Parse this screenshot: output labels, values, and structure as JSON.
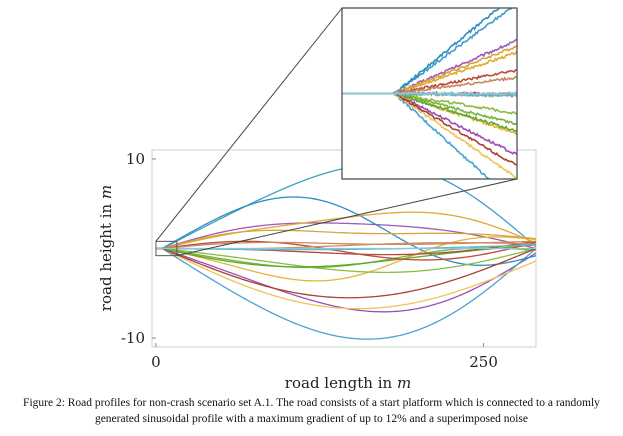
{
  "chart_data": {
    "type": "line",
    "xlabel_text": "road length in",
    "xlabel_var": "m",
    "ylabel_text": "road height in",
    "ylabel_var": "m",
    "xlim": [
      -3,
      290
    ],
    "ylim": [
      -11,
      11
    ],
    "x_ticks": [
      {
        "value": 0,
        "label": "0"
      },
      {
        "value": 250,
        "label": "250"
      }
    ],
    "y_ticks": [
      {
        "value": 10,
        "label": "10"
      },
      {
        "value": -10,
        "label": "-10"
      }
    ],
    "platform": {
      "x_end": 4.8,
      "height": 0
    },
    "x_end": 290,
    "zoom_window": {
      "x": [
        0,
        16
      ],
      "y": [
        -0.8,
        0.8
      ]
    },
    "series": [
      {
        "color": "#a05ab8",
        "end": 0.0,
        "amps": [
          3.0,
          2.2,
          0.6
        ],
        "phases": [
          0.1,
          1.2,
          2.6
        ]
      },
      {
        "color": "#9b4fb6",
        "end": -0.5,
        "amps": [
          -6.5,
          1.0,
          0.0
        ],
        "phases": [
          0,
          0,
          0
        ]
      },
      {
        "color": "#3f9fc9",
        "end": 0.2,
        "amps": [
          9.0,
          -1.5,
          0.5
        ],
        "phases": [
          0.05,
          0.3,
          0.8
        ]
      },
      {
        "color": "#4aa3d0",
        "end": 0.0,
        "amps": [
          -10.0,
          0.8,
          0.0
        ],
        "phases": [
          0,
          0,
          0
        ]
      },
      {
        "color": "#2e8fbf",
        "end": -0.8,
        "amps": [
          4.0,
          3.0,
          -1.0
        ],
        "phases": [
          0.2,
          0.1,
          0.4
        ]
      },
      {
        "color": "#e7b43a",
        "end": 1.0,
        "amps": [
          -3.0,
          -2.5,
          0.8
        ],
        "phases": [
          0.3,
          0.5,
          0.2
        ]
      },
      {
        "color": "#e1a92e",
        "end": 0.6,
        "amps": [
          3.5,
          -0.8,
          0.3
        ],
        "phases": [
          0,
          0.2,
          0.1
        ]
      },
      {
        "color": "#f0c35a",
        "end": -1.4,
        "amps": [
          -6.0,
          0.0,
          0.0
        ],
        "phases": [
          0.4,
          0,
          0
        ]
      },
      {
        "color": "#d7a63a",
        "end": 1.1,
        "amps": [
          1.5,
          2.0,
          0.4
        ],
        "phases": [
          0.2,
          0.7,
          0.3
        ]
      },
      {
        "color": "#8bbd45",
        "end": 0.0,
        "amps": [
          -2.5,
          0.6,
          0.5
        ],
        "phases": [
          0.2,
          0.3,
          0.9
        ]
      },
      {
        "color": "#7ab33a",
        "end": -0.2,
        "amps": [
          -1.5,
          -0.8,
          0.3
        ],
        "phases": [
          0.1,
          0.1,
          0.2
        ]
      },
      {
        "color": "#5fa830",
        "end": 0.4,
        "amps": [
          -2.0,
          -0.5,
          0.0
        ],
        "phases": [
          0.15,
          0,
          0
        ]
      },
      {
        "color": "#b64a3a",
        "end": 0.8,
        "amps": [
          -1.0,
          0.4,
          0.0
        ],
        "phases": [
          0,
          0.2,
          0
        ]
      },
      {
        "color": "#a84233",
        "end": 0.0,
        "amps": [
          -5.5,
          0.0,
          0.0
        ],
        "phases": [
          0.3,
          0,
          0
        ]
      },
      {
        "color": "#c0493b",
        "end": 0.7,
        "amps": [
          -0.8,
          1.8,
          0.0
        ],
        "phases": [
          0.0,
          0.4,
          0
        ]
      },
      {
        "color": "#c48c5e",
        "end": 0.8,
        "amps": [
          0.2,
          0.3,
          0.1
        ],
        "phases": [
          0.1,
          0.2,
          0.3
        ]
      },
      {
        "color": "#d88a5a",
        "end": 0.5,
        "amps": [
          0.1,
          -0.2,
          0.0
        ],
        "phases": [
          0,
          0,
          0
        ]
      },
      {
        "color": "#5ab9c9",
        "end": 0.4,
        "amps": [
          -0.3,
          0.0,
          0.0
        ],
        "phases": [
          0,
          0,
          0
        ]
      },
      {
        "color": "#89c7e0",
        "end": 0.0,
        "amps": [
          0.0,
          0.0,
          0.0
        ],
        "phases": [
          0,
          0,
          0
        ]
      }
    ]
  },
  "caption": {
    "text": "Figure 2: Road profiles for non-crash scenario set A.1. The road consists of a start platform which is connected to a randomly generated sinusoidal profile with a maximum gradient of up to 12% and a superimposed noise"
  }
}
